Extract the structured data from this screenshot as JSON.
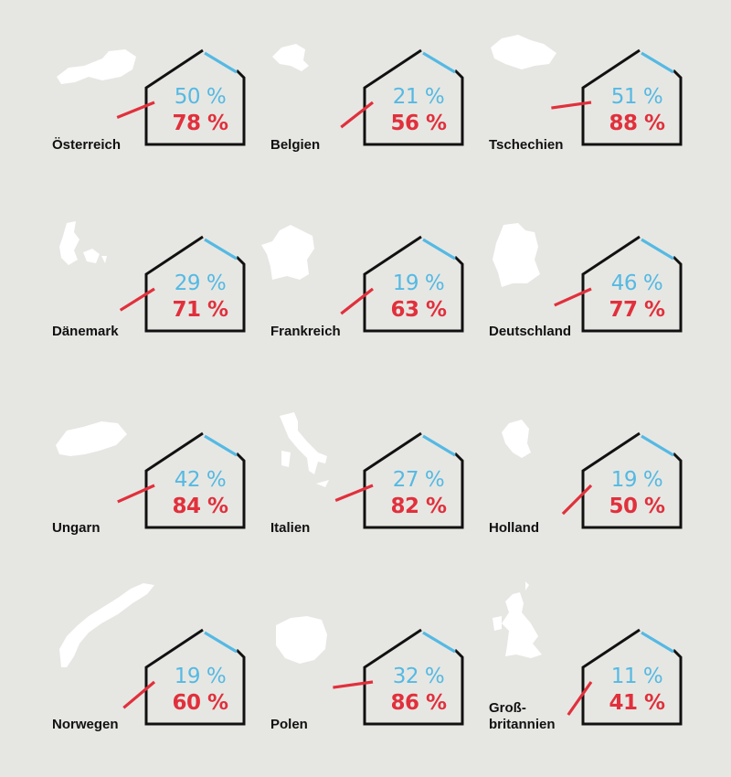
{
  "colors": {
    "background": "#e6e7e3",
    "house": "#111111",
    "blue": "#55b9e3",
    "red": "#e1303c",
    "map": "#ffffff"
  },
  "chart_data": {
    "type": "table",
    "title": "",
    "categories": [
      "Österreich",
      "Belgien",
      "Tschechien",
      "Dänemark",
      "Frankreich",
      "Deutschland",
      "Ungarn",
      "Italien",
      "Holland",
      "Norwegen",
      "Polen",
      "Groß-\nbritannien"
    ],
    "series": [
      {
        "values": [
          "50 %",
          "21 %",
          "51 %",
          "29 %",
          "19 %",
          "46 %",
          "42 %",
          "27 %",
          "19 %",
          "19 %",
          "32 %",
          "11 %"
        ],
        "color": "#55b9e3"
      },
      {
        "values": [
          "78 %",
          "56 %",
          "88 %",
          "71 %",
          "63 %",
          "77 %",
          "84 %",
          "82 %",
          "50 %",
          "60 %",
          "86 %",
          "41 %"
        ],
        "color": "#e1303c"
      }
    ]
  }
}
